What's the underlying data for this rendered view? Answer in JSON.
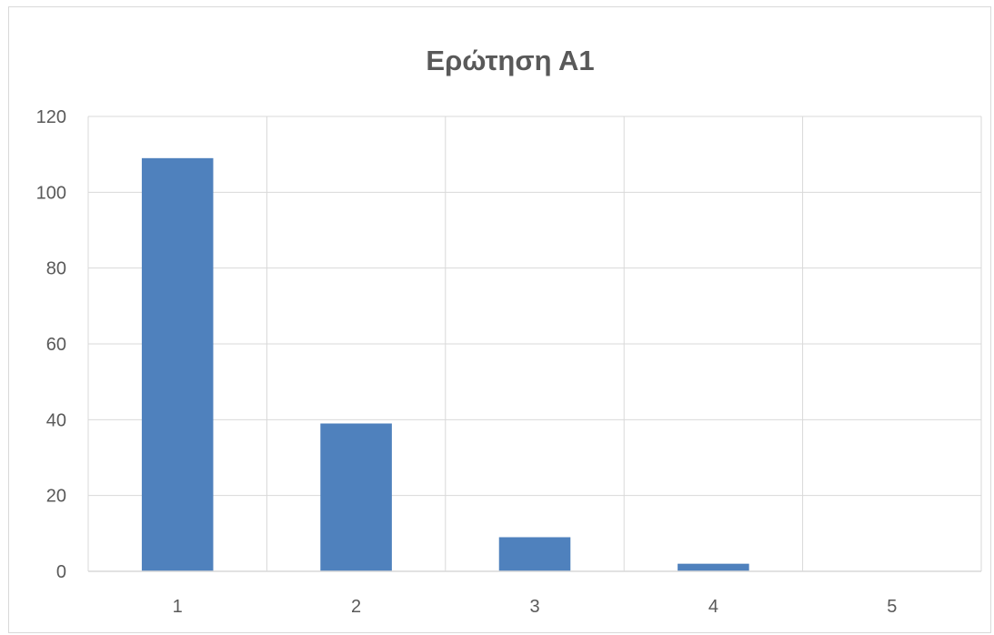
{
  "chart_data": {
    "type": "bar",
    "title": "Ερώτηση Α1",
    "xlabel": "",
    "ylabel": "",
    "categories": [
      "1",
      "2",
      "3",
      "4",
      "5"
    ],
    "values": [
      109,
      39,
      9,
      2,
      0
    ],
    "ylim": [
      0,
      120
    ],
    "yticks": [
      "0",
      "20",
      "40",
      "60",
      "80",
      "100",
      "120"
    ],
    "grid": true,
    "legend": "none",
    "colors": {
      "bar": "#4f81bd",
      "grid": "#d9d9d9",
      "text": "#595959"
    }
  }
}
